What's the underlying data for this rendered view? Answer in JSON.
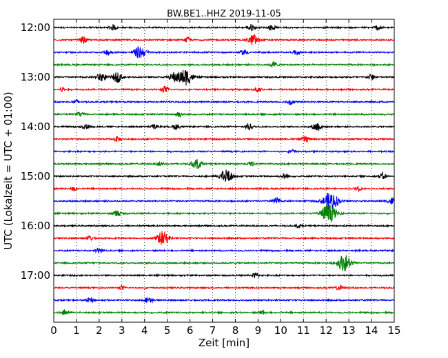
{
  "chart_data": {
    "type": "line",
    "title": "BW.BE1..HHZ 2019-11-05",
    "xlabel": "Zeit  [min]",
    "ylabel": "UTC (Lokalzeit = UTC + 01:00)",
    "xlim": [
      0,
      15
    ],
    "x_ticks": [
      "0",
      "1",
      "2",
      "3",
      "4",
      "5",
      "6",
      "7",
      "8",
      "9",
      "10",
      "11",
      "12",
      "13",
      "14",
      "15"
    ],
    "y_ticks": [
      "12:00",
      "13:00",
      "14:00",
      "15:00",
      "16:00",
      "17:00"
    ],
    "grid": "vertical dotted",
    "color_cycle": [
      "#000000",
      "#ff0000",
      "#0000ff",
      "#008000"
    ],
    "series": [
      {
        "start": "12:00",
        "events": [
          [
            2.6,
            0.3
          ],
          [
            8.7,
            0.35
          ],
          [
            9.6,
            0.3
          ],
          [
            14.3,
            0.3
          ]
        ]
      },
      {
        "start": "12:15",
        "events": [
          [
            1.3,
            0.35
          ],
          [
            5.9,
            0.25
          ],
          [
            8.8,
            0.6
          ]
        ]
      },
      {
        "start": "12:30",
        "events": [
          [
            2.4,
            0.3
          ],
          [
            3.8,
            0.7
          ],
          [
            8.4,
            0.3
          ],
          [
            10.7,
            0.25
          ]
        ]
      },
      {
        "start": "12:45",
        "events": [
          [
            9.7,
            0.3
          ]
        ]
      },
      {
        "start": "13:00",
        "events": [
          [
            2.1,
            0.5
          ],
          [
            2.8,
            0.55
          ],
          [
            5.3,
            0.5
          ],
          [
            5.8,
            0.9
          ],
          [
            14.0,
            0.3
          ]
        ]
      },
      {
        "start": "13:15",
        "events": [
          [
            0.4,
            0.25
          ],
          [
            4.9,
            0.35
          ],
          [
            9.0,
            0.3
          ]
        ]
      },
      {
        "start": "13:30",
        "events": [
          [
            1.0,
            0.25
          ],
          [
            10.4,
            0.3
          ]
        ]
      },
      {
        "start": "13:45",
        "events": [
          [
            1.2,
            0.3
          ],
          [
            5.5,
            0.3
          ]
        ]
      },
      {
        "start": "14:00",
        "events": [
          [
            1.4,
            0.3
          ],
          [
            4.4,
            0.25
          ],
          [
            5.4,
            0.3
          ],
          [
            8.6,
            0.35
          ],
          [
            11.6,
            0.5
          ]
        ]
      },
      {
        "start": "14:15",
        "events": [
          [
            2.8,
            0.25
          ],
          [
            11.1,
            0.35
          ]
        ]
      },
      {
        "start": "14:30",
        "events": [
          [
            10.5,
            0.2
          ]
        ]
      },
      {
        "start": "14:45",
        "events": [
          [
            4.7,
            0.25
          ],
          [
            6.3,
            0.55
          ],
          [
            8.7,
            0.25
          ]
        ]
      },
      {
        "start": "15:00",
        "events": [
          [
            7.6,
            0.75
          ],
          [
            10.2,
            0.3
          ],
          [
            14.5,
            0.35
          ]
        ]
      },
      {
        "start": "15:15",
        "events": [
          [
            0.9,
            0.25
          ],
          [
            13.4,
            0.25
          ]
        ]
      },
      {
        "start": "15:30",
        "events": [
          [
            9.8,
            0.35
          ],
          [
            12.2,
            1.0
          ],
          [
            14.9,
            0.4
          ]
        ]
      },
      {
        "start": "15:45",
        "events": [
          [
            2.8,
            0.35
          ],
          [
            12.1,
            1.0
          ]
        ]
      },
      {
        "start": "16:00",
        "events": [
          [
            10.8,
            0.2
          ]
        ]
      },
      {
        "start": "16:15",
        "events": [
          [
            1.6,
            0.25
          ],
          [
            4.8,
            0.75
          ]
        ]
      },
      {
        "start": "16:30",
        "events": [
          [
            2.0,
            0.3
          ]
        ]
      },
      {
        "start": "16:45",
        "events": [
          [
            12.8,
            0.9
          ]
        ]
      },
      {
        "start": "17:00",
        "events": [
          [
            8.9,
            0.3
          ]
        ]
      },
      {
        "start": "17:15",
        "events": [
          [
            3.0,
            0.2
          ],
          [
            12.6,
            0.3
          ]
        ]
      },
      {
        "start": "17:30",
        "events": [
          [
            1.6,
            0.3
          ],
          [
            4.2,
            0.35
          ]
        ]
      },
      {
        "start": "17:45",
        "events": [
          [
            0.5,
            0.3
          ],
          [
            9.2,
            0.25
          ]
        ]
      }
    ]
  }
}
